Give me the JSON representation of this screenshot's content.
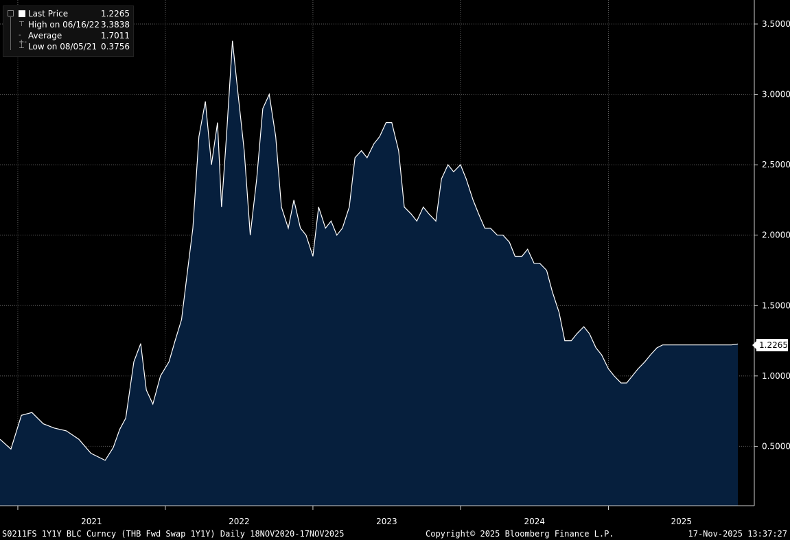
{
  "legend": {
    "last_label": "Last Price",
    "last_value": "1.2265",
    "high_label": "High on 06/16/22",
    "high_value": "3.3838",
    "avg_label": "Average",
    "avg_value": "1.7011",
    "low_label": "Low on 08/05/21",
    "low_value": "0.3756"
  },
  "footer": {
    "left": "S0211FS 1Y1Y BLC Curncy (THB Fwd Swap 1Y1Y) Daily 18NOV2020-17NOV2025",
    "center": "Copyright© 2025 Bloomberg Finance L.P.",
    "right": "17-Nov-2025 13:37:27"
  },
  "last_price_tag": "1.2265",
  "colors": {
    "fill": "#061f3d",
    "line": "#ffffff",
    "grid": "#5f5f5f",
    "background": "#000000"
  },
  "chart_data": {
    "type": "area",
    "ylim": [
      0.2,
      3.7
    ],
    "yticks": [
      "0.5000",
      "1.0000",
      "1.5000",
      "2.0000",
      "2.5000",
      "3.0000",
      "3.5000"
    ],
    "ytick_values": [
      0.5,
      1.0,
      1.5,
      2.0,
      2.5,
      3.0,
      3.5
    ],
    "xticks": [
      "2021",
      "2022",
      "2023",
      "2024",
      "2025"
    ],
    "xlim": [
      "2020-11-18",
      "2025-11-17"
    ],
    "grid": true,
    "series": [
      {
        "dates": [
          "2020-11-18",
          "2020-12-15",
          "2021-01-10",
          "2021-02-05",
          "2021-03-05",
          "2021-04-01",
          "2021-05-01",
          "2021-06-01",
          "2021-07-01",
          "2021-08-05",
          "2021-08-25",
          "2021-09-10",
          "2021-09-25",
          "2021-10-15",
          "2021-11-01",
          "2021-11-15",
          "2021-12-01",
          "2021-12-20",
          "2022-01-10",
          "2022-01-25",
          "2022-02-10",
          "2022-02-25",
          "2022-03-10",
          "2022-03-25",
          "2022-04-10",
          "2022-04-25",
          "2022-05-10",
          "2022-05-20",
          "2022-06-01",
          "2022-06-16",
          "2022-06-30",
          "2022-07-15",
          "2022-07-30",
          "2022-08-15",
          "2022-08-30",
          "2022-09-15",
          "2022-10-01",
          "2022-10-15",
          "2022-11-01",
          "2022-11-15",
          "2022-12-01",
          "2022-12-15",
          "2023-01-01",
          "2023-01-15",
          "2023-02-01",
          "2023-02-15",
          "2023-03-01",
          "2023-03-15",
          "2023-04-01",
          "2023-04-15",
          "2023-05-01",
          "2023-05-15",
          "2023-06-01",
          "2023-06-15",
          "2023-07-01",
          "2023-07-15",
          "2023-08-01",
          "2023-08-15",
          "2023-09-01",
          "2023-09-15",
          "2023-10-01",
          "2023-10-15",
          "2023-11-01",
          "2023-11-15",
          "2023-12-01",
          "2023-12-15",
          "2024-01-01",
          "2024-01-15",
          "2024-02-01",
          "2024-02-15",
          "2024-03-01",
          "2024-03-15",
          "2024-04-01",
          "2024-04-15",
          "2024-05-01",
          "2024-05-15",
          "2024-06-01",
          "2024-06-15",
          "2024-07-01",
          "2024-07-15",
          "2024-08-01",
          "2024-08-15",
          "2024-09-01",
          "2024-09-15",
          "2024-10-01",
          "2024-10-15",
          "2024-11-01",
          "2024-11-15",
          "2024-12-01",
          "2024-12-15",
          "2025-01-01",
          "2025-01-15",
          "2025-02-01",
          "2025-02-15",
          "2025-03-01",
          "2025-03-15",
          "2025-04-01",
          "2025-04-15",
          "2025-05-01",
          "2025-05-15",
          "2025-06-01",
          "2025-06-15",
          "2025-07-01",
          "2025-07-15",
          "2025-08-01",
          "2025-08-15",
          "2025-09-01",
          "2025-09-15",
          "2025-10-01",
          "2025-10-15",
          "2025-11-01",
          "2025-11-17"
        ],
        "values": [
          0.55,
          0.48,
          0.72,
          0.74,
          0.66,
          0.63,
          0.61,
          0.55,
          0.45,
          0.4,
          0.49,
          0.62,
          0.7,
          1.1,
          1.23,
          0.9,
          0.8,
          1.0,
          1.1,
          1.25,
          1.4,
          1.75,
          2.05,
          2.7,
          2.95,
          2.5,
          2.8,
          2.2,
          2.7,
          3.38,
          3.0,
          2.6,
          2.0,
          2.4,
          2.9,
          3.0,
          2.7,
          2.2,
          2.05,
          2.25,
          2.05,
          2.0,
          1.85,
          2.2,
          2.05,
          2.1,
          2.0,
          2.05,
          2.2,
          2.55,
          2.6,
          2.55,
          2.65,
          2.7,
          2.8,
          2.8,
          2.6,
          2.2,
          2.15,
          2.1,
          2.2,
          2.15,
          2.1,
          2.4,
          2.5,
          2.45,
          2.5,
          2.4,
          2.25,
          2.15,
          2.05,
          2.05,
          2.0,
          2.0,
          1.95,
          1.85,
          1.85,
          1.9,
          1.8,
          1.8,
          1.75,
          1.6,
          1.45,
          1.25,
          1.25,
          1.3,
          1.35,
          1.3,
          1.2,
          1.15,
          1.05,
          1.0,
          0.95,
          0.95,
          1.0,
          1.05,
          1.1,
          1.15,
          1.2,
          1.22,
          1.22,
          1.22,
          1.22,
          1.22,
          1.22,
          1.22,
          1.22,
          1.22,
          1.22,
          1.22,
          1.22,
          1.2265
        ]
      }
    ]
  }
}
